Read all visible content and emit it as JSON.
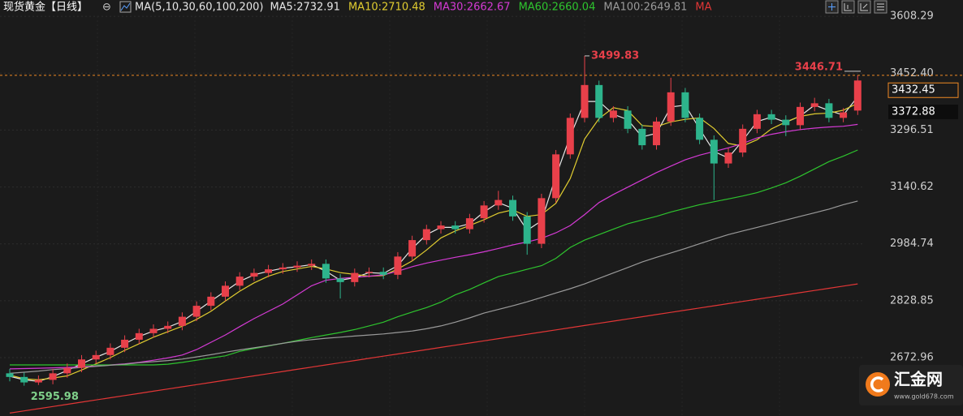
{
  "chart_data": {
    "type": "candlestick",
    "title": "现货黄金【日线】",
    "collapse_symbol": "⊖",
    "indicator_label": "MA(5,10,30,60,100,200)",
    "up_color": "#e8404a",
    "down_color": "#2db48c",
    "ylim": [
      2513,
      3653
    ],
    "yticks": [
      3608.29,
      {
        "value": 3452.4,
        "label": "3452.40"
      },
      3296.51,
      3140.62,
      2984.74,
      2828.85,
      2672.96
    ],
    "grid": true,
    "open": [
      2630,
      2620,
      2605,
      2612,
      2630,
      2645,
      2668,
      2680,
      2700,
      2722,
      2740,
      2752,
      2760,
      2785,
      2815,
      2840,
      2870,
      2895,
      2905,
      2915,
      2920,
      2925,
      2930,
      2890,
      2880,
      2905,
      2908,
      2900,
      2950,
      2995,
      3025,
      3035,
      3025,
      3055,
      3090,
      3105,
      3060,
      2985,
      3110,
      3230,
      3330,
      3420,
      3330,
      3350,
      3300,
      3255,
      3320,
      3400,
      3330,
      3270,
      3205,
      3235,
      3300,
      3340,
      3325,
      3310,
      3360,
      3370,
      3330,
      3350
    ],
    "high": [
      2642,
      2632,
      2624,
      2642,
      2657,
      2680,
      2692,
      2712,
      2734,
      2752,
      2764,
      2772,
      2797,
      2827,
      2852,
      2882,
      2907,
      2917,
      2927,
      2932,
      2937,
      2942,
      2942,
      2902,
      2917,
      2920,
      2920,
      2962,
      3007,
      3037,
      3047,
      3047,
      3067,
      3102,
      3130,
      3117,
      3072,
      3122,
      3242,
      3342,
      3499.83,
      3432,
      3362,
      3362,
      3312,
      3332,
      3440,
      3412,
      3342,
      3282,
      3247,
      3312,
      3352,
      3352,
      3337,
      3372,
      3385,
      3382,
      3357,
      3446.71
    ],
    "low": [
      2608,
      2595.98,
      2598,
      2600,
      2618,
      2633,
      2656,
      2668,
      2688,
      2710,
      2728,
      2740,
      2748,
      2773,
      2803,
      2828,
      2858,
      2883,
      2893,
      2903,
      2908,
      2913,
      2878,
      2835,
      2868,
      2893,
      2888,
      2888,
      2938,
      2983,
      3013,
      3013,
      3013,
      3043,
      3078,
      3048,
      2955,
      2973,
      3098,
      3218,
      3318,
      3318,
      3318,
      3288,
      3243,
      3243,
      3308,
      3318,
      3258,
      3105,
      3193,
      3223,
      3288,
      3313,
      3280,
      3298,
      3348,
      3318,
      3318,
      3338
    ],
    "close": [
      2620,
      2605,
      2612,
      2630,
      2645,
      2668,
      2680,
      2700,
      2722,
      2740,
      2752,
      2760,
      2785,
      2815,
      2840,
      2870,
      2895,
      2905,
      2915,
      2920,
      2925,
      2930,
      2890,
      2880,
      2905,
      2908,
      2900,
      2950,
      2995,
      3025,
      3035,
      3025,
      3055,
      3090,
      3105,
      3060,
      2985,
      3110,
      3230,
      3330,
      3420,
      3330,
      3350,
      3300,
      3255,
      3320,
      3400,
      3330,
      3270,
      3205,
      3235,
      3300,
      3340,
      3325,
      3310,
      3360,
      3370,
      3330,
      3345,
      3432.45
    ],
    "series": [
      {
        "name": "MA5:2732.91",
        "color": "#e6e6e6",
        "values": [
          2622,
          2612,
          2608,
          2621,
          2638,
          2656,
          2674,
          2690,
          2711,
          2731,
          2746,
          2756,
          2772,
          2800,
          2828,
          2855,
          2882,
          2900,
          2910,
          2918,
          2922,
          2928,
          2910,
          2885,
          2892,
          2906,
          2904,
          2925,
          2972,
          3010,
          3030,
          3030,
          3040,
          3072,
          3098,
          3082,
          3022,
          3048,
          3170,
          3280,
          3375,
          3375,
          3340,
          3325,
          3278,
          3288,
          3360,
          3365,
          3300,
          3238,
          3220,
          3268,
          3320,
          3332,
          3318,
          3335,
          3365,
          3350,
          3338,
          3388
        ]
      },
      {
        "name": "MA10:2710.48",
        "color": "#e0cc30",
        "values": [
          2625,
          2615,
          2612,
          2617,
          2623,
          2639,
          2656,
          2673,
          2693,
          2711,
          2729,
          2744,
          2759,
          2778,
          2800,
          2828,
          2855,
          2878,
          2896,
          2909,
          2916,
          2923,
          2916,
          2906,
          2901,
          2896,
          2898,
          2916,
          2938,
          2968,
          3001,
          3020,
          3035,
          3051,
          3069,
          3078,
          3060,
          3065,
          3096,
          3164,
          3272,
          3328,
          3358,
          3350,
          3309,
          3306,
          3319,
          3326,
          3330,
          3301,
          3260,
          3253,
          3270,
          3300,
          3319,
          3334,
          3341,
          3343,
          3351,
          3370
        ]
      },
      {
        "name": "MA30:2662.67",
        "color": "#d43ad4",
        "values": [
          2642,
          2643,
          2644,
          2645,
          2646,
          2648,
          2650,
          2653,
          2656,
          2660,
          2666,
          2672,
          2680,
          2695,
          2715,
          2735,
          2758,
          2780,
          2800,
          2820,
          2845,
          2870,
          2885,
          2890,
          2893,
          2896,
          2900,
          2910,
          2922,
          2932,
          2940,
          2948,
          2955,
          2963,
          2972,
          2982,
          2990,
          3000,
          3015,
          3035,
          3065,
          3098,
          3120,
          3140,
          3160,
          3180,
          3198,
          3215,
          3228,
          3238,
          3248,
          3260,
          3275,
          3285,
          3292,
          3298,
          3302,
          3305,
          3307,
          3312
        ]
      },
      {
        "name": "MA60:2660.04",
        "color": "#2ec42e",
        "values": [
          2653,
          2653,
          2653,
          2653,
          2653,
          2653,
          2653,
          2653,
          2653,
          2653,
          2653,
          2655,
          2660,
          2666,
          2672,
          2678,
          2690,
          2698,
          2705,
          2712,
          2720,
          2728,
          2735,
          2742,
          2750,
          2760,
          2770,
          2785,
          2798,
          2810,
          2825,
          2845,
          2860,
          2878,
          2895,
          2905,
          2915,
          2925,
          2945,
          2975,
          2995,
          3010,
          3025,
          3040,
          3050,
          3060,
          3072,
          3082,
          3092,
          3100,
          3108,
          3116,
          3125,
          3138,
          3152,
          3170,
          3190,
          3210,
          3225,
          3242
        ]
      },
      {
        "name": "MA100:2649.81",
        "color": "#9a9a9a",
        "values": [
          2630,
          2633,
          2636,
          2640,
          2643,
          2646,
          2649,
          2652,
          2655,
          2659,
          2662,
          2665,
          2669,
          2675,
          2681,
          2688,
          2694,
          2700,
          2706,
          2712,
          2718,
          2722,
          2726,
          2729,
          2732,
          2735,
          2738,
          2742,
          2746,
          2752,
          2760,
          2770,
          2782,
          2795,
          2805,
          2815,
          2826,
          2838,
          2850,
          2862,
          2875,
          2890,
          2905,
          2920,
          2935,
          2948,
          2960,
          2972,
          2985,
          2998,
          3010,
          3020,
          3030,
          3040,
          3050,
          3060,
          3070,
          3080,
          3092,
          3102
        ]
      },
      {
        "name": "MA",
        "color": "#e23636",
        "values": [
          2521,
          2527,
          2533,
          2539,
          2545,
          2551,
          2557,
          2563,
          2569,
          2575,
          2581,
          2587,
          2593,
          2599,
          2605,
          2611,
          2617,
          2623,
          2629,
          2635,
          2641,
          2647,
          2653,
          2659,
          2665,
          2671,
          2677,
          2683,
          2689,
          2695,
          2701,
          2707,
          2713,
          2719,
          2725,
          2731,
          2737,
          2743,
          2749,
          2755,
          2761,
          2767,
          2773,
          2779,
          2785,
          2791,
          2797,
          2803,
          2809,
          2815,
          2821,
          2827,
          2833,
          2839,
          2845,
          2851,
          2857,
          2863,
          2869,
          2875
        ]
      }
    ],
    "annotations": {
      "high": 3499.83,
      "low": 2595.98,
      "reference_line": 3446.71,
      "price_tags": [
        3432.45,
        3372.88
      ]
    },
    "logo": {
      "name": "汇金网",
      "url": "www.gold678.com"
    }
  }
}
